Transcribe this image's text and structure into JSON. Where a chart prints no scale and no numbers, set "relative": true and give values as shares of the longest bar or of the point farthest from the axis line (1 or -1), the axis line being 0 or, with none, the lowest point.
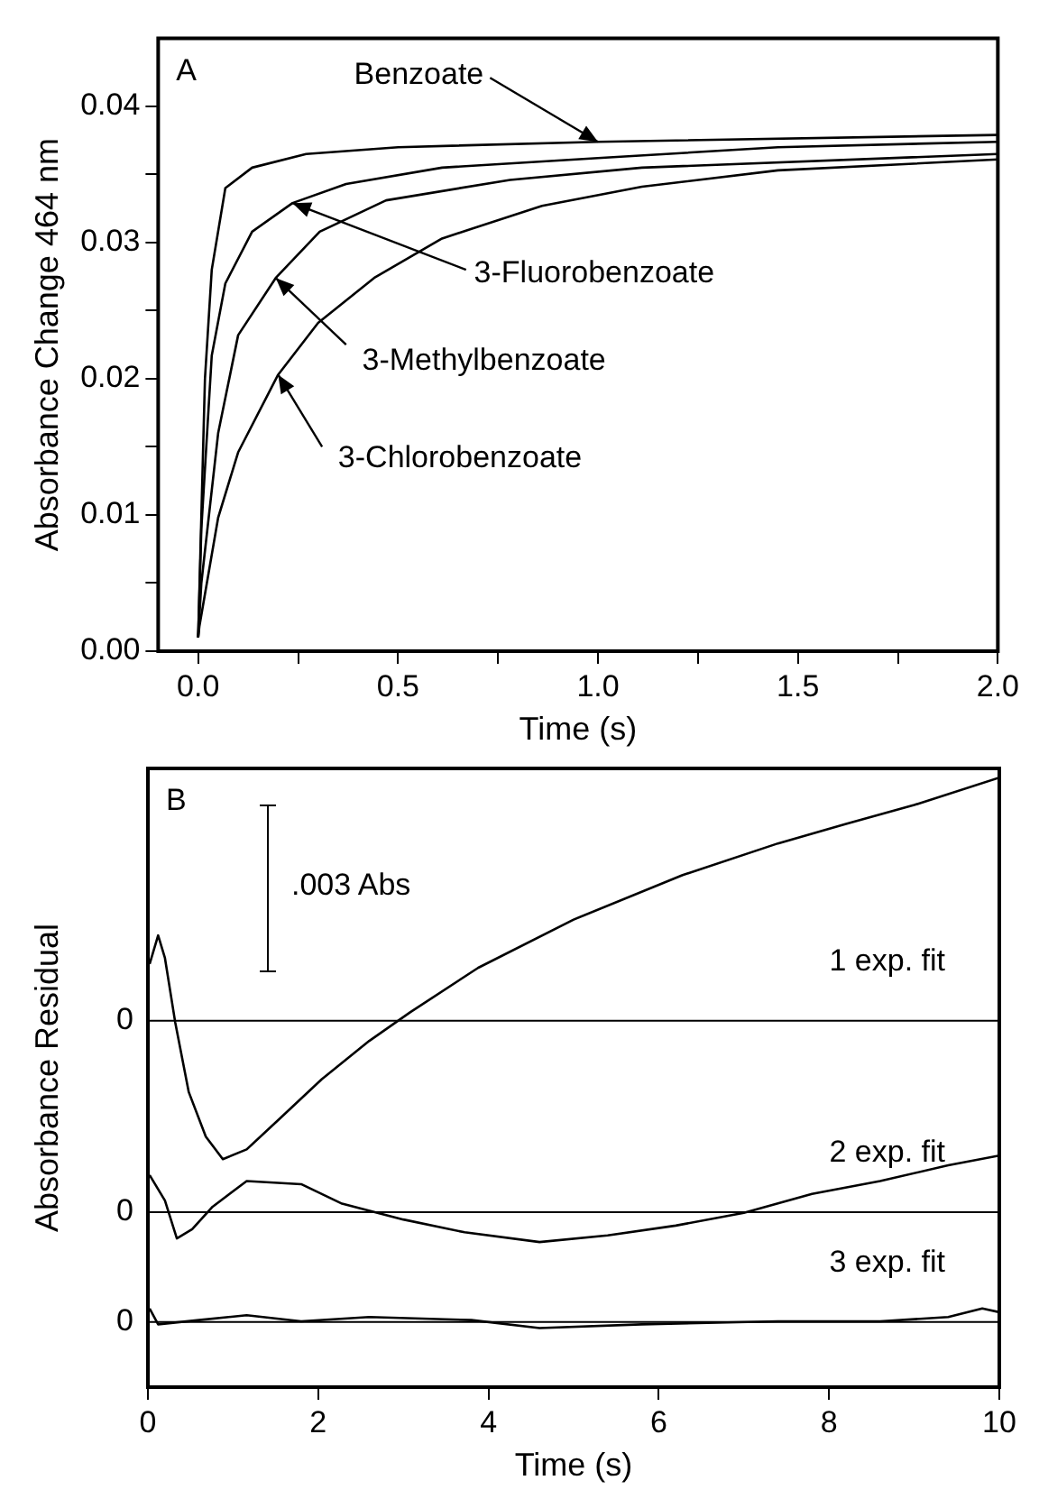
{
  "chart_data": [
    {
      "type": "line",
      "xlabel": "Time (s)",
      "ylabel": "Absorbance Change 464 nm",
      "marker": "none",
      "line_style": "solid",
      "annotations": [
        "A",
        {
          "text": "Benzoate",
          "x": 1.0,
          "y": 0.0374
        },
        {
          "text": "3-Fluorobenzoate",
          "x": 0.236,
          "y": 0.0329
        },
        {
          "text": "3-Methylbenzoate",
          "x": 0.194,
          "y": 0.0274
        },
        {
          "text": "3-Chlorobenzoate",
          "x": 0.2,
          "y": 0.0203
        }
      ],
      "legend": false,
      "xlim": [
        -0.1,
        2.0
      ],
      "xticks": [
        {
          "value": 0,
          "label": "0.0"
        },
        {
          "value": 0.25,
          "label": null
        },
        {
          "value": 0.5,
          "label": "0.5"
        },
        {
          "value": 0.75,
          "label": null
        },
        {
          "value": 1,
          "label": "1.0"
        },
        {
          "value": 1.25,
          "label": null
        },
        {
          "value": 1.5,
          "label": "1.5"
        },
        {
          "value": 1.75,
          "label": null
        },
        {
          "value": 2,
          "label": "2.0"
        }
      ],
      "ylim": [
        0,
        0.045
      ],
      "yticks": [
        {
          "value": 0,
          "label": "0.00"
        },
        {
          "value": 0.005,
          "label": null
        },
        {
          "value": 0.01,
          "label": "0.01"
        },
        {
          "value": 0.015,
          "label": null
        },
        {
          "value": 0.02,
          "label": "0.02"
        },
        {
          "value": 0.025,
          "label": null
        },
        {
          "value": 0.03,
          "label": "0.03"
        },
        {
          "value": 0.035,
          "label": null
        },
        {
          "value": 0.04,
          "label": "0.04"
        }
      ],
      "series": [
        {
          "color": "#000000",
          "x": [
            0,
            0.017,
            0.034,
            0.068,
            0.135,
            0.27,
            0.5,
            1.0,
            2.0
          ],
          "values": [
            0.001,
            0.02,
            0.028,
            0.034,
            0.0355,
            0.0365,
            0.037,
            0.0374,
            0.0379
          ]
        },
        {
          "color": "#000000",
          "x": [
            0,
            0.008,
            0.034,
            0.068,
            0.135,
            0.236,
            0.37,
            0.61,
            1.0,
            1.45,
            2.0
          ],
          "values": [
            0.001,
            0.009,
            0.0217,
            0.027,
            0.0308,
            0.0329,
            0.0343,
            0.0355,
            0.0362,
            0.037,
            0.0374
          ]
        },
        {
          "color": "#000000",
          "x": [
            0,
            0.008,
            0.05,
            0.1,
            0.194,
            0.304,
            0.47,
            0.78,
            1.11,
            2.0
          ],
          "values": [
            0.001,
            0.005,
            0.016,
            0.0232,
            0.0274,
            0.0308,
            0.0331,
            0.0346,
            0.0355,
            0.0365
          ]
        },
        {
          "color": "#000000",
          "x": [
            0,
            0.003,
            0.05,
            0.1,
            0.2,
            0.3,
            0.44,
            0.61,
            0.86,
            1.11,
            1.45,
            2.0
          ],
          "values": [
            0.001,
            0.0018,
            0.0098,
            0.0146,
            0.0203,
            0.0241,
            0.0274,
            0.0303,
            0.0327,
            0.0341,
            0.0353,
            0.0361
          ]
        }
      ]
    },
    {
      "type": "line",
      "xlabel": "Time (s)",
      "ylabel": "Absorbance Residual",
      "marker": "none",
      "line_style": "solid",
      "relative": true,
      "annotations": [
        "B",
        ".003 Abs",
        "1 exp. fit",
        "2 exp. fit",
        "3 exp. fit",
        "0",
        "0",
        "0"
      ],
      "legend": false,
      "xlim": [
        0,
        10
      ],
      "xticks": [
        0,
        2,
        4,
        6,
        8,
        10
      ],
      "ref_lines": [
        {
          "axis": "y",
          "value": 0.601,
          "color": "#000000"
        },
        {
          "axis": "y",
          "value": 0.287,
          "color": "#000000"
        },
        {
          "axis": "y",
          "value": 0.107,
          "color": "#000000"
        }
      ],
      "series": [
        {
          "color": "#000000",
          "x": [
            0.02,
            0.12,
            0.2,
            0.32,
            0.48,
            0.68,
            0.88,
            1.16,
            1.56,
            2.04,
            2.6,
            3.08,
            3.88,
            5.0,
            6.28,
            7.4,
            8.2,
            9.0,
            10
          ],
          "values": [
            0.694,
            0.741,
            0.704,
            0.599,
            0.484,
            0.411,
            0.374,
            0.39,
            0.442,
            0.505,
            0.568,
            0.615,
            0.688,
            0.767,
            0.84,
            0.892,
            0.924,
            0.955,
            1.0
          ]
        },
        {
          "color": "#000000",
          "x": [
            0.02,
            0.2,
            0.34,
            0.52,
            0.76,
            1.16,
            1.8,
            2.28,
            3.0,
            3.72,
            4.6,
            5.4,
            6.2,
            7.0,
            7.8,
            8.6,
            9.4,
            10
          ],
          "values": [
            0.348,
            0.306,
            0.244,
            0.259,
            0.296,
            0.338,
            0.333,
            0.301,
            0.275,
            0.254,
            0.238,
            0.249,
            0.265,
            0.286,
            0.317,
            0.338,
            0.364,
            0.38
          ]
        },
        {
          "color": "#000000",
          "x": [
            0.02,
            0.12,
            0.6,
            1.16,
            1.8,
            2.6,
            3.8,
            4.6,
            5.8,
            7.4,
            8.6,
            9.4,
            9.8,
            10
          ],
          "values": [
            0.129,
            0.103,
            0.11,
            0.118,
            0.108,
            0.115,
            0.11,
            0.097,
            0.103,
            0.108,
            0.108,
            0.115,
            0.129,
            0.123
          ]
        }
      ]
    }
  ]
}
